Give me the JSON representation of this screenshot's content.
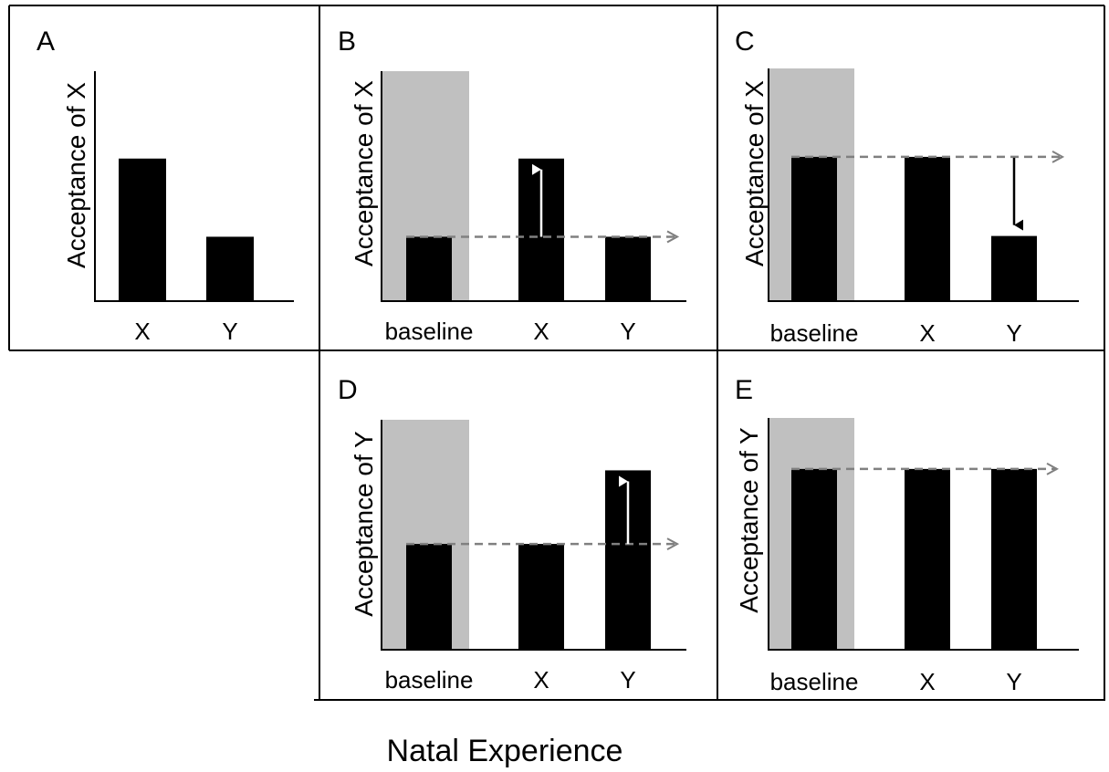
{
  "figure": {
    "title": "Natal Experience",
    "colors": {
      "bar": "#000000",
      "baseline_band": "#c0c0c0",
      "reference_arrow": "#808080",
      "increase_arrow": "#ffffff",
      "decrease_arrow": "#000000",
      "frame": "#000000"
    }
  },
  "chart_data": [
    {
      "panel": "A",
      "type": "bar",
      "ylabel": "Acceptance of X",
      "categories": [
        "X",
        "Y"
      ],
      "values": [
        0.62,
        0.28
      ],
      "baseline_band": false,
      "reference": null,
      "change": null
    },
    {
      "panel": "B",
      "type": "bar",
      "ylabel": "Acceptance of X",
      "categories": [
        "baseline",
        "X",
        "Y"
      ],
      "values": [
        0.28,
        0.62,
        0.28
      ],
      "baseline_band": true,
      "reference": 0.28,
      "change": {
        "category": "X",
        "direction": "increase"
      }
    },
    {
      "panel": "C",
      "type": "bar",
      "ylabel": "Acceptance of X",
      "categories": [
        "baseline",
        "X",
        "Y"
      ],
      "values": [
        0.62,
        0.62,
        0.28
      ],
      "baseline_band": true,
      "reference": 0.62,
      "change": {
        "category": "Y",
        "direction": "decrease"
      }
    },
    {
      "panel": "D",
      "type": "bar",
      "ylabel": "Acceptance of Y",
      "categories": [
        "baseline",
        "X",
        "Y"
      ],
      "values": [
        0.46,
        0.46,
        0.78
      ],
      "baseline_band": true,
      "reference": 0.46,
      "change": {
        "category": "Y",
        "direction": "increase"
      }
    },
    {
      "panel": "E",
      "type": "bar",
      "ylabel": "Acceptance of Y",
      "categories": [
        "baseline",
        "X",
        "Y"
      ],
      "values": [
        0.78,
        0.78,
        0.78
      ],
      "baseline_band": true,
      "reference": 0.78,
      "change": null
    }
  ]
}
